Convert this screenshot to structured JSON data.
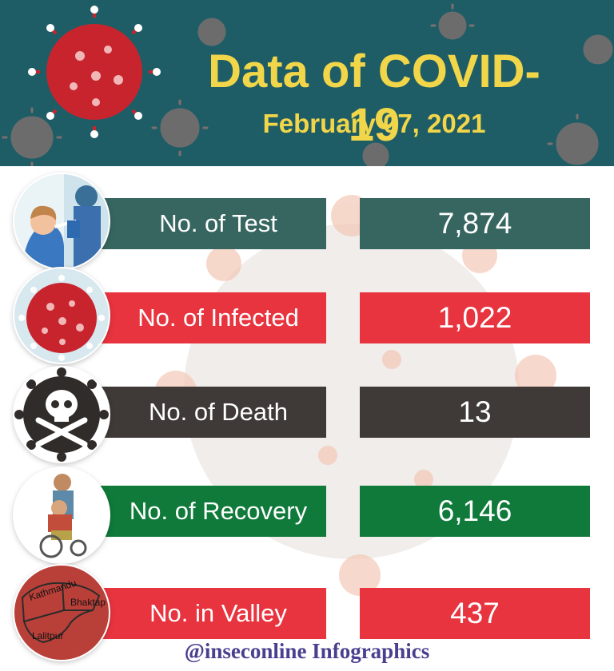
{
  "header": {
    "title": "Data of COVID-19",
    "date": "February 07, 2021"
  },
  "rows": [
    {
      "label": "No. of Test",
      "value": "7,874",
      "color": "#376660",
      "icon": "test-swab-icon"
    },
    {
      "label": "No. of Infected",
      "value": "1,022",
      "color": "#e8343f",
      "icon": "virus-icon"
    },
    {
      "label": "No. of Death",
      "value": "13",
      "color": "#3f3a37",
      "icon": "skull-crossbones-icon"
    },
    {
      "label": "No. of Recovery",
      "value": "6,146",
      "color": "#0f7a3a",
      "icon": "wheelchair-patient-icon"
    },
    {
      "label": "No. in Valley",
      "value": "437",
      "color": "#e8343f",
      "icon": "valley-map-icon"
    }
  ],
  "map_labels": {
    "kathmandu": "Kathmandu",
    "bhaktapur": "Bhaktap",
    "lalitpur": "Lalitpur"
  },
  "footer": "@inseconline Infographics"
}
